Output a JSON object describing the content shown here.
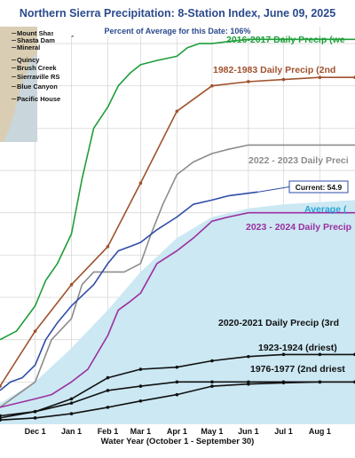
{
  "chart_data": {
    "type": "line",
    "title": "Northern Sierra Precipitation: 8-Station Index, June 09, 2025",
    "subtitle": "Percent of Average for this Date: 106%",
    "xlabel": "Water Year (October 1 - September 30)",
    "x_ticks": [
      "Dec 1",
      "Jan 1",
      "Feb 1",
      "Mar 1",
      "Apr 1",
      "May 1",
      "Jun 1",
      "Jul 1",
      "Aug 1"
    ],
    "xlim": [
      "Nov 1",
      "Aug 31"
    ],
    "ylim": [
      0,
      94
    ],
    "grid": true,
    "colors": {
      "green": "#1f9e3a",
      "brown": "#a0522d",
      "gray": "#8c8c8c",
      "blue": "#2f4da8",
      "purple": "#9c2fa0",
      "black": "#111111",
      "average_fill": "#cbe8f3",
      "title": "#2b4a8c",
      "average_label": "#29a3d6"
    },
    "stations": [
      "Mount Shasta City",
      "Shasta Dam",
      "Mineral",
      "Quincy",
      "Brush Creek",
      "Sierraville RS",
      "Blue Canyon",
      "Pacific House"
    ],
    "current_label": "Current: 54.9",
    "series": [
      {
        "name": "2016-2017 Daily Precip (we",
        "color": "#1f9e3a",
        "x": [
          "Nov 1",
          "Nov 15",
          "Dec 1",
          "Dec 10",
          "Dec 20",
          "Jan 1",
          "Jan 10",
          "Jan 20",
          "Feb 1",
          "Feb 10",
          "Feb 20",
          "Mar 1",
          "Mar 15",
          "Apr 1",
          "Apr 10",
          "Apr 20",
          "May 1",
          "May 15",
          "Jun 1",
          "Jul 1",
          "Aug 1",
          "Aug 31"
        ],
        "y": [
          20,
          22,
          28,
          34,
          38,
          45,
          58,
          70,
          75,
          80,
          83,
          85,
          86,
          87,
          89,
          90,
          90,
          90.5,
          91,
          91,
          91,
          91
        ]
      },
      {
        "name": "1982-1983 Daily Precip (2nd",
        "color": "#a0522d",
        "x": [
          "Nov 1",
          "Dec 1",
          "Jan 1",
          "Feb 1",
          "Mar 1",
          "Apr 1",
          "May 1",
          "Jun 1",
          "Jul 1",
          "Aug 1",
          "Aug 31"
        ],
        "y": [
          9,
          22,
          33,
          42,
          57,
          74,
          80,
          81,
          81.5,
          82,
          82
        ]
      },
      {
        "name": "2022 - 2023 Daily Preci",
        "color": "#8c8c8c",
        "x": [
          "Nov 1",
          "Dec 1",
          "Dec 15",
          "Jan 1",
          "Jan 10",
          "Jan 20",
          "Feb 1",
          "Feb 15",
          "Mar 1",
          "Mar 10",
          "Mar 20",
          "Apr 1",
          "Apr 15",
          "May 1",
          "May 15",
          "Jun 1",
          "Jul 1",
          "Aug 1",
          "Aug 31"
        ],
        "y": [
          4,
          10,
          20,
          25,
          33,
          36,
          36,
          36,
          38,
          45,
          52,
          59,
          62,
          64,
          65,
          66,
          66,
          66,
          66
        ]
      },
      {
        "name": "Current",
        "color": "#2f4da8",
        "x": [
          "Nov 1",
          "Nov 10",
          "Nov 20",
          "Dec 1",
          "Dec 10",
          "Dec 20",
          "Jan 1",
          "Jan 20",
          "Feb 1",
          "Feb 10",
          "Feb 20",
          "Mar 1",
          "Mar 15",
          "Apr 1",
          "Apr 15",
          "May 1",
          "May 15",
          "Jun 9"
        ],
        "y": [
          8,
          10,
          11,
          14,
          20,
          24,
          28,
          33,
          38,
          41,
          42,
          43,
          46,
          49,
          52,
          53,
          54,
          54.9
        ]
      },
      {
        "name": "Average (",
        "color": "#cbe8f3",
        "x": [
          "Nov 1",
          "Dec 1",
          "Jan 1",
          "Feb 1",
          "Mar 1",
          "Apr 1",
          "May 1",
          "Jun 1",
          "Jul 1",
          "Aug 1",
          "Aug 31"
        ],
        "y": [
          5,
          10,
          18,
          27,
          36,
          44,
          49,
          51,
          52,
          52.5,
          53
        ]
      },
      {
        "name": "2023 - 2024 Daily Precip",
        "color": "#9c2fa0",
        "x": [
          "Nov 1",
          "Dec 1",
          "Dec 15",
          "Jan 1",
          "Jan 15",
          "Feb 1",
          "Feb 10",
          "Feb 20",
          "Mar 1",
          "Mar 15",
          "Apr 1",
          "Apr 15",
          "May 1",
          "May 15",
          "Jun 1",
          "Jul 1",
          "Aug 1",
          "Aug 31"
        ],
        "y": [
          4,
          6,
          7,
          10,
          13,
          21,
          27,
          29,
          31,
          38,
          41,
          44,
          48,
          49,
          50,
          50,
          50,
          50
        ]
      },
      {
        "name": "2020-2021 Daily Precip (3rd",
        "color": "#111111",
        "x": [
          "Nov 1",
          "Dec 1",
          "Jan 1",
          "Feb 1",
          "Mar 1",
          "Apr 1",
          "May 1",
          "Jun 1",
          "Jul 1",
          "Aug 1",
          "Aug 31"
        ],
        "y": [
          2,
          3,
          6,
          11,
          13,
          13.5,
          15,
          16,
          16.5,
          16.5,
          16.5
        ]
      },
      {
        "name": "1923-1924 (driest)",
        "color": "#111111",
        "x": [
          "Nov 1",
          "Dec 1",
          "Jan 1",
          "Feb 1",
          "Mar 1",
          "Apr 1",
          "May 1",
          "Jun 1",
          "Jul 1",
          "Aug 1",
          "Aug 31"
        ],
        "y": [
          1.5,
          3,
          5,
          8,
          9,
          10,
          10,
          10,
          10,
          10,
          10
        ]
      },
      {
        "name": "1976-1977 (2nd driest",
        "color": "#111111",
        "x": [
          "Nov 1",
          "Dec 1",
          "Jan 1",
          "Feb 1",
          "Mar 1",
          "Apr 1",
          "May 1",
          "Jun 1",
          "Jul 1",
          "Aug 1",
          "Aug 31"
        ],
        "y": [
          1,
          1.5,
          2.5,
          4,
          5.5,
          7,
          9,
          9.5,
          9.8,
          10,
          10
        ]
      }
    ]
  }
}
